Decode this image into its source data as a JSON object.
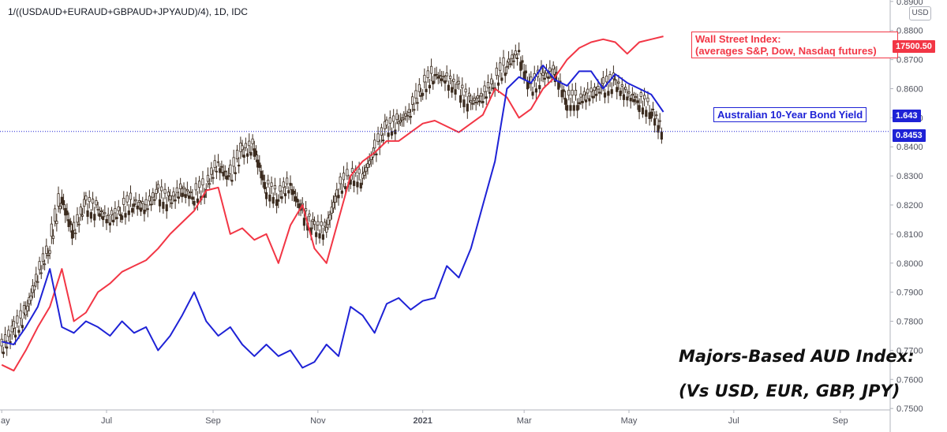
{
  "header": {
    "symbol_title": "1/((USDAUD+EURAUD+GBPAUD+JPYAUD)/4), 1D, IDC",
    "currency": "USD"
  },
  "labels": {
    "wall_street": "Wall Street Index:\n(averages S&P, Dow, Nasdaq futures)",
    "aus_bond": "Australian 10-Year Bond Yield"
  },
  "price_tags": {
    "wall_street": "17500.50",
    "bond_yield": "1.643",
    "aud_index": "0.8453"
  },
  "annotation": {
    "line1": "Majors-Based AUD Index:",
    "line2": "(Vs USD, EUR, GBP, JPY)"
  },
  "colors": {
    "wall_street": "#f23645",
    "bond_yield": "#1e22d6",
    "candle_up": "#ffffff",
    "candle_down": "#3b2b1e",
    "last_price_line": "#1e22d6"
  },
  "chart_data": {
    "type": "line",
    "x_ticks": [
      "May",
      "Jul",
      "Sep",
      "Nov",
      "2021",
      "Mar",
      "May",
      "Jul",
      "Sep"
    ],
    "y_ticks": [
      "0.7500",
      "0.7600",
      "0.7700",
      "0.7800",
      "0.7900",
      "0.8000",
      "0.8100",
      "0.8200",
      "0.8300",
      "0.8400",
      "0.8500",
      "0.8600",
      "0.8700",
      "0.8800",
      "0.8900"
    ],
    "ylim": [
      0.7495,
      0.8905
    ],
    "last_value": 0.8453,
    "series": [
      {
        "name": "1/((USDAUD+EURAUD+GBPAUD+JPYAUD)/4)",
        "style": "candlestick",
        "x": [
          "2020-05-01",
          "2020-05-08",
          "2020-05-15",
          "2020-05-22",
          "2020-05-29",
          "2020-06-05",
          "2020-06-12",
          "2020-06-19",
          "2020-06-26",
          "2020-07-03",
          "2020-07-10",
          "2020-07-17",
          "2020-07-24",
          "2020-07-31",
          "2020-08-07",
          "2020-08-14",
          "2020-08-21",
          "2020-08-28",
          "2020-09-04",
          "2020-09-11",
          "2020-09-18",
          "2020-09-25",
          "2020-10-02",
          "2020-10-09",
          "2020-10-16",
          "2020-10-23",
          "2020-10-30",
          "2020-11-06",
          "2020-11-13",
          "2020-11-20",
          "2020-11-27",
          "2020-12-04",
          "2020-12-11",
          "2020-12-18",
          "2020-12-25",
          "2021-01-01",
          "2021-01-08",
          "2021-01-15",
          "2021-01-22",
          "2021-01-29",
          "2021-02-05",
          "2021-02-12",
          "2021-02-19",
          "2021-02-26",
          "2021-03-05",
          "2021-03-12",
          "2021-03-19",
          "2021-03-26",
          "2021-04-02",
          "2021-04-09",
          "2021-04-16",
          "2021-04-23",
          "2021-04-30",
          "2021-05-07",
          "2021-05-14",
          "2021-05-21"
        ],
        "y": [
          0.77,
          0.776,
          0.782,
          0.795,
          0.805,
          0.823,
          0.81,
          0.82,
          0.818,
          0.815,
          0.818,
          0.821,
          0.819,
          0.824,
          0.821,
          0.825,
          0.823,
          0.826,
          0.834,
          0.829,
          0.838,
          0.84,
          0.826,
          0.823,
          0.827,
          0.818,
          0.812,
          0.811,
          0.825,
          0.83,
          0.829,
          0.838,
          0.846,
          0.848,
          0.852,
          0.86,
          0.865,
          0.863,
          0.86,
          0.855,
          0.857,
          0.862,
          0.868,
          0.872,
          0.86,
          0.864,
          0.866,
          0.856,
          0.856,
          0.858,
          0.86,
          0.862,
          0.858,
          0.856,
          0.853,
          0.8453
        ]
      },
      {
        "name": "Wall Street Index",
        "x": [
          "2020-05-01",
          "2020-05-08",
          "2020-05-15",
          "2020-05-22",
          "2020-05-29",
          "2020-06-05",
          "2020-06-12",
          "2020-06-19",
          "2020-06-26",
          "2020-07-03",
          "2020-07-10",
          "2020-07-17",
          "2020-07-24",
          "2020-07-31",
          "2020-08-07",
          "2020-08-14",
          "2020-08-21",
          "2020-08-28",
          "2020-09-04",
          "2020-09-11",
          "2020-09-18",
          "2020-09-25",
          "2020-10-02",
          "2020-10-09",
          "2020-10-16",
          "2020-10-23",
          "2020-10-30",
          "2020-11-06",
          "2020-11-13",
          "2020-11-20",
          "2020-11-27",
          "2020-12-04",
          "2020-12-11",
          "2020-12-18",
          "2020-12-25",
          "2021-01-01",
          "2021-01-08",
          "2021-01-15",
          "2021-01-22",
          "2021-01-29",
          "2021-02-05",
          "2021-02-12",
          "2021-02-19",
          "2021-02-26",
          "2021-03-05",
          "2021-03-12",
          "2021-03-19",
          "2021-03-26",
          "2021-04-02",
          "2021-04-09",
          "2021-04-16",
          "2021-04-23",
          "2021-04-30",
          "2021-05-07",
          "2021-05-14",
          "2021-05-21"
        ],
        "y": [
          0.765,
          0.763,
          0.77,
          0.778,
          0.785,
          0.798,
          0.78,
          0.783,
          0.79,
          0.793,
          0.797,
          0.799,
          0.801,
          0.805,
          0.81,
          0.814,
          0.818,
          0.825,
          0.826,
          0.81,
          0.812,
          0.808,
          0.81,
          0.8,
          0.813,
          0.82,
          0.805,
          0.8,
          0.815,
          0.83,
          0.835,
          0.838,
          0.842,
          0.842,
          0.845,
          0.848,
          0.849,
          0.847,
          0.845,
          0.848,
          0.851,
          0.86,
          0.857,
          0.85,
          0.853,
          0.86,
          0.864,
          0.87,
          0.874,
          0.876,
          0.877,
          0.876,
          0.872,
          0.876,
          0.877,
          0.878
        ]
      },
      {
        "name": "Australian 10-Year Bond Yield",
        "x": [
          "2020-05-01",
          "2020-05-08",
          "2020-05-15",
          "2020-05-22",
          "2020-05-29",
          "2020-06-05",
          "2020-06-12",
          "2020-06-19",
          "2020-06-26",
          "2020-07-03",
          "2020-07-10",
          "2020-07-17",
          "2020-07-24",
          "2020-07-31",
          "2020-08-07",
          "2020-08-14",
          "2020-08-21",
          "2020-08-28",
          "2020-09-04",
          "2020-09-11",
          "2020-09-18",
          "2020-09-25",
          "2020-10-02",
          "2020-10-09",
          "2020-10-16",
          "2020-10-23",
          "2020-10-30",
          "2020-11-06",
          "2020-11-13",
          "2020-11-20",
          "2020-11-27",
          "2020-12-04",
          "2020-12-11",
          "2020-12-18",
          "2020-12-25",
          "2021-01-01",
          "2021-01-08",
          "2021-01-15",
          "2021-01-22",
          "2021-01-29",
          "2021-02-05",
          "2021-02-12",
          "2021-02-19",
          "2021-02-26",
          "2021-03-05",
          "2021-03-12",
          "2021-03-19",
          "2021-03-26",
          "2021-04-02",
          "2021-04-09",
          "2021-04-16",
          "2021-04-23",
          "2021-04-30",
          "2021-05-07",
          "2021-05-14",
          "2021-05-21"
        ],
        "y": [
          0.773,
          0.772,
          0.778,
          0.785,
          0.798,
          0.778,
          0.776,
          0.78,
          0.778,
          0.775,
          0.78,
          0.776,
          0.778,
          0.77,
          0.775,
          0.782,
          0.79,
          0.78,
          0.775,
          0.778,
          0.772,
          0.768,
          0.772,
          0.768,
          0.77,
          0.764,
          0.766,
          0.772,
          0.768,
          0.785,
          0.782,
          0.776,
          0.786,
          0.788,
          0.784,
          0.787,
          0.788,
          0.799,
          0.795,
          0.805,
          0.82,
          0.835,
          0.86,
          0.864,
          0.862,
          0.868,
          0.863,
          0.861,
          0.866,
          0.866,
          0.86,
          0.865,
          0.862,
          0.86,
          0.858,
          0.852
        ]
      }
    ]
  }
}
